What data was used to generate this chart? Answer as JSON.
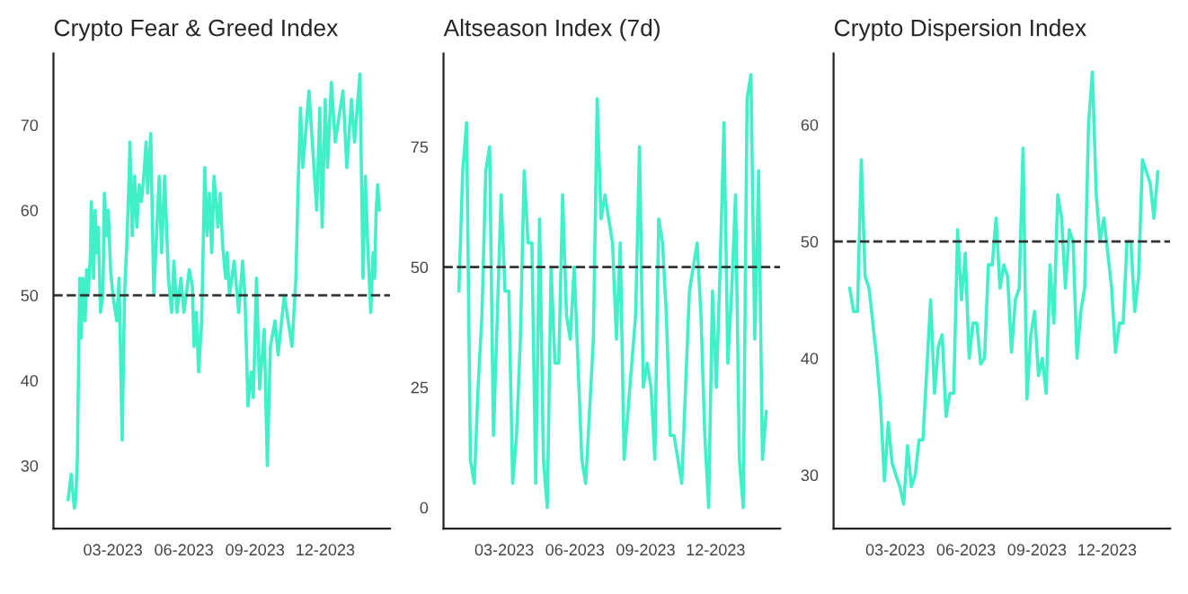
{
  "chart_data": [
    {
      "type": "line",
      "title": "Crypto Fear & Greed Index",
      "xlim": [
        "2022-12-14",
        "2024-02-23"
      ],
      "ylim": [
        22.6,
        78.4
      ],
      "yticks": [
        30,
        40,
        50,
        60,
        70
      ],
      "xticks": [
        {
          "value": "2023-03-01",
          "label": "03-2023"
        },
        {
          "value": "2023-06-01",
          "label": "06-2023"
        },
        {
          "value": "2023-09-01",
          "label": "09-2023"
        },
        {
          "value": "2023-12-01",
          "label": "12-2023"
        }
      ],
      "grid": false,
      "legend": false,
      "ref_lines": [
        {
          "axis": "y",
          "value": 50,
          "label": null,
          "color": "#333333",
          "line_style": "dashed"
        }
      ],
      "series": [
        {
          "color": "#40f0c8",
          "x": [
            "2023-01-02",
            "2023-01-06",
            "2023-01-10",
            "2023-01-12",
            "2023-01-14",
            "2023-01-17",
            "2023-01-19",
            "2023-01-21",
            "2023-01-24",
            "2023-01-26",
            "2023-01-28",
            "2023-01-31",
            "2023-02-01",
            "2023-02-04",
            "2023-02-06",
            "2023-02-08",
            "2023-02-10",
            "2023-02-13",
            "2023-02-16",
            "2023-02-18",
            "2023-02-21",
            "2023-02-23",
            "2023-02-26",
            "2023-03-01",
            "2023-03-06",
            "2023-03-09",
            "2023-03-13",
            "2023-03-16",
            "2023-03-19",
            "2023-03-22",
            "2023-03-23",
            "2023-03-26",
            "2023-03-29",
            "2023-04-01",
            "2023-04-04",
            "2023-04-07",
            "2023-04-10",
            "2023-04-13",
            "2023-04-15",
            "2023-04-19",
            "2023-04-23",
            "2023-04-26",
            "2023-04-30",
            "2023-05-03",
            "2023-05-07",
            "2023-05-12",
            "2023-05-16",
            "2023-05-19",
            "2023-05-23",
            "2023-05-28",
            "2023-06-01",
            "2023-06-08",
            "2023-06-12",
            "2023-06-14",
            "2023-06-17",
            "2023-06-20",
            "2023-06-24",
            "2023-06-28",
            "2023-07-01",
            "2023-07-04",
            "2023-07-07",
            "2023-07-10",
            "2023-07-15",
            "2023-07-18",
            "2023-07-21",
            "2023-07-25",
            "2023-07-27",
            "2023-07-30",
            "2023-08-05",
            "2023-08-11",
            "2023-08-16",
            "2023-08-19",
            "2023-08-23",
            "2023-08-27",
            "2023-08-30",
            "2023-09-03",
            "2023-09-07",
            "2023-09-13",
            "2023-09-17",
            "2023-09-21",
            "2023-09-27",
            "2023-10-01",
            "2023-10-09",
            "2023-10-19",
            "2023-10-24",
            "2023-10-27",
            "2023-10-30",
            "2023-11-02",
            "2023-11-10",
            "2023-11-20",
            "2023-11-24",
            "2023-11-27",
            "2023-12-01",
            "2023-12-04",
            "2023-12-09",
            "2023-12-14",
            "2023-12-24",
            "2023-12-29",
            "2024-01-04",
            "2024-01-08",
            "2024-01-15",
            "2024-01-19",
            "2024-01-22",
            "2024-01-25",
            "2024-01-29",
            "2024-02-01",
            "2024-02-03",
            "2024-02-05",
            "2024-02-07",
            "2024-02-09"
          ],
          "values": [
            26,
            29,
            25,
            26,
            31,
            52,
            45,
            52,
            47,
            53,
            50,
            55,
            61,
            52,
            60,
            55,
            58,
            48,
            50,
            62,
            57,
            60,
            53,
            50,
            47,
            52,
            33,
            50,
            56,
            64,
            68,
            57,
            64,
            58,
            63,
            61,
            64,
            68,
            62,
            69,
            50,
            56,
            64,
            55,
            64,
            52,
            48,
            54,
            48,
            52,
            48,
            53,
            51,
            44,
            48,
            41,
            47,
            65,
            57,
            62,
            55,
            64,
            58,
            62,
            56,
            52,
            55,
            50,
            54,
            48,
            54,
            50,
            37,
            41,
            38,
            52,
            39,
            46,
            30,
            44,
            47,
            43,
            50,
            44,
            52,
            63,
            72,
            65,
            74,
            60,
            72,
            58,
            73,
            65,
            75,
            68,
            74,
            65,
            73,
            68,
            76,
            52,
            64,
            56,
            48,
            55,
            52,
            60,
            63,
            60
          ]
        }
      ]
    },
    {
      "type": "line",
      "title": "Altseason Index (7d)",
      "xlim": [
        "2022-12-12",
        "2024-02-23"
      ],
      "ylim": [
        -4.4,
        94.4
      ],
      "yticks": [
        0,
        25,
        50,
        75
      ],
      "xticks": [
        {
          "value": "2023-03-01",
          "label": "03-2023"
        },
        {
          "value": "2023-06-01",
          "label": "06-2023"
        },
        {
          "value": "2023-09-01",
          "label": "09-2023"
        },
        {
          "value": "2023-12-01",
          "label": "12-2023"
        }
      ],
      "grid": false,
      "legend": false,
      "ref_lines": [
        {
          "axis": "y",
          "value": 50,
          "label": null,
          "color": "#333333",
          "line_style": "dashed"
        }
      ],
      "series": [
        {
          "color": "#40f0c8",
          "x": [
            "2023-01-01",
            "2023-01-06",
            "2023-01-11",
            "2023-01-16",
            "2023-01-21",
            "2023-01-26",
            "2023-01-31",
            "2023-02-05",
            "2023-02-10",
            "2023-02-15",
            "2023-02-20",
            "2023-02-25",
            "2023-03-02",
            "2023-03-07",
            "2023-03-12",
            "2023-03-17",
            "2023-03-22",
            "2023-03-27",
            "2023-04-01",
            "2023-04-06",
            "2023-04-11",
            "2023-04-16",
            "2023-04-21",
            "2023-04-26",
            "2023-05-01",
            "2023-05-06",
            "2023-05-11",
            "2023-05-16",
            "2023-05-21",
            "2023-05-26",
            "2023-05-31",
            "2023-06-05",
            "2023-06-10",
            "2023-06-15",
            "2023-06-20",
            "2023-06-25",
            "2023-06-30",
            "2023-07-05",
            "2023-07-10",
            "2023-07-15",
            "2023-07-20",
            "2023-07-25",
            "2023-07-30",
            "2023-08-04",
            "2023-08-09",
            "2023-08-14",
            "2023-08-19",
            "2023-08-24",
            "2023-08-29",
            "2023-09-03",
            "2023-09-08",
            "2023-09-13",
            "2023-09-18",
            "2023-09-23",
            "2023-09-28",
            "2023-10-03",
            "2023-10-08",
            "2023-10-13",
            "2023-10-18",
            "2023-10-23",
            "2023-10-28",
            "2023-11-02",
            "2023-11-07",
            "2023-11-12",
            "2023-11-17",
            "2023-11-22",
            "2023-11-27",
            "2023-12-02",
            "2023-12-07",
            "2023-12-12",
            "2023-12-17",
            "2023-12-22",
            "2023-12-27",
            "2024-01-01",
            "2024-01-06",
            "2024-01-11",
            "2024-01-16",
            "2024-01-21",
            "2024-01-26",
            "2024-01-31",
            "2024-02-05"
          ],
          "values": [
            45,
            70,
            80,
            10,
            5,
            25,
            40,
            70,
            75,
            15,
            40,
            65,
            45,
            45,
            5,
            15,
            35,
            70,
            55,
            55,
            5,
            60,
            10,
            0,
            50,
            30,
            30,
            65,
            40,
            35,
            50,
            30,
            10,
            5,
            20,
            35,
            85,
            60,
            65,
            60,
            55,
            35,
            55,
            10,
            20,
            30,
            40,
            75,
            25,
            30,
            25,
            10,
            60,
            55,
            40,
            15,
            15,
            10,
            5,
            25,
            45,
            50,
            55,
            40,
            15,
            0,
            45,
            25,
            50,
            80,
            30,
            45,
            65,
            10,
            0,
            85,
            90,
            35,
            70,
            10,
            20
          ]
        }
      ]
    },
    {
      "type": "line",
      "title": "Crypto Dispersion Index",
      "xlim": [
        "2022-12-11",
        "2024-02-21"
      ],
      "ylim": [
        25.4,
        66.1
      ],
      "yticks": [
        30,
        40,
        50,
        60
      ],
      "xticks": [
        {
          "value": "2023-03-01",
          "label": "03-2023"
        },
        {
          "value": "2023-06-01",
          "label": "06-2023"
        },
        {
          "value": "2023-09-01",
          "label": "09-2023"
        },
        {
          "value": "2023-12-01",
          "label": "12-2023"
        }
      ],
      "grid": false,
      "legend": false,
      "ref_lines": [
        {
          "axis": "y",
          "value": 50,
          "label": null,
          "color": "#333333",
          "line_style": "dashed"
        }
      ],
      "series": [
        {
          "color": "#40f0c8",
          "x": [
            "2023-01-01",
            "2023-01-06",
            "2023-01-11",
            "2023-01-16",
            "2023-01-21",
            "2023-01-26",
            "2023-01-31",
            "2023-02-05",
            "2023-02-10",
            "2023-02-15",
            "2023-02-20",
            "2023-02-25",
            "2023-03-02",
            "2023-03-07",
            "2023-03-12",
            "2023-03-17",
            "2023-03-22",
            "2023-03-27",
            "2023-04-01",
            "2023-04-06",
            "2023-04-11",
            "2023-04-16",
            "2023-04-21",
            "2023-04-26",
            "2023-05-01",
            "2023-05-06",
            "2023-05-11",
            "2023-05-16",
            "2023-05-21",
            "2023-05-26",
            "2023-05-31",
            "2023-06-05",
            "2023-06-10",
            "2023-06-15",
            "2023-06-20",
            "2023-06-25",
            "2023-06-30",
            "2023-07-05",
            "2023-07-10",
            "2023-07-15",
            "2023-07-20",
            "2023-07-25",
            "2023-07-30",
            "2023-08-04",
            "2023-08-09",
            "2023-08-14",
            "2023-08-19",
            "2023-08-24",
            "2023-08-29",
            "2023-09-03",
            "2023-09-08",
            "2023-09-13",
            "2023-09-18",
            "2023-09-23",
            "2023-09-28",
            "2023-10-03",
            "2023-10-08",
            "2023-10-13",
            "2023-10-18",
            "2023-10-23",
            "2023-10-28",
            "2023-11-02",
            "2023-11-07",
            "2023-11-12",
            "2023-11-17",
            "2023-11-22",
            "2023-11-27",
            "2023-12-02",
            "2023-12-07",
            "2023-12-12",
            "2023-12-17",
            "2023-12-22",
            "2023-12-27",
            "2024-01-01",
            "2024-01-06",
            "2024-01-11",
            "2024-01-16",
            "2024-01-21",
            "2024-01-26",
            "2024-01-31",
            "2024-02-05"
          ],
          "values": [
            46,
            44,
            44,
            57,
            47,
            46,
            43,
            40,
            36,
            29.5,
            34.5,
            31,
            30,
            29,
            27.5,
            32.5,
            29,
            30,
            33,
            33,
            39,
            45,
            37,
            41,
            42,
            35,
            37,
            37,
            51,
            45,
            49,
            40,
            43,
            43,
            39.5,
            40,
            48,
            48,
            52,
            46,
            48,
            47,
            40.5,
            45,
            46,
            58,
            36.5,
            42,
            44,
            38.5,
            40,
            37,
            48,
            43,
            54,
            52,
            46,
            51,
            50,
            40,
            44,
            46,
            60,
            64.5,
            54,
            50,
            52,
            49,
            46,
            40.5,
            43,
            43,
            50,
            50,
            44,
            47,
            57,
            56,
            55,
            52,
            56
          ]
        }
      ]
    }
  ]
}
